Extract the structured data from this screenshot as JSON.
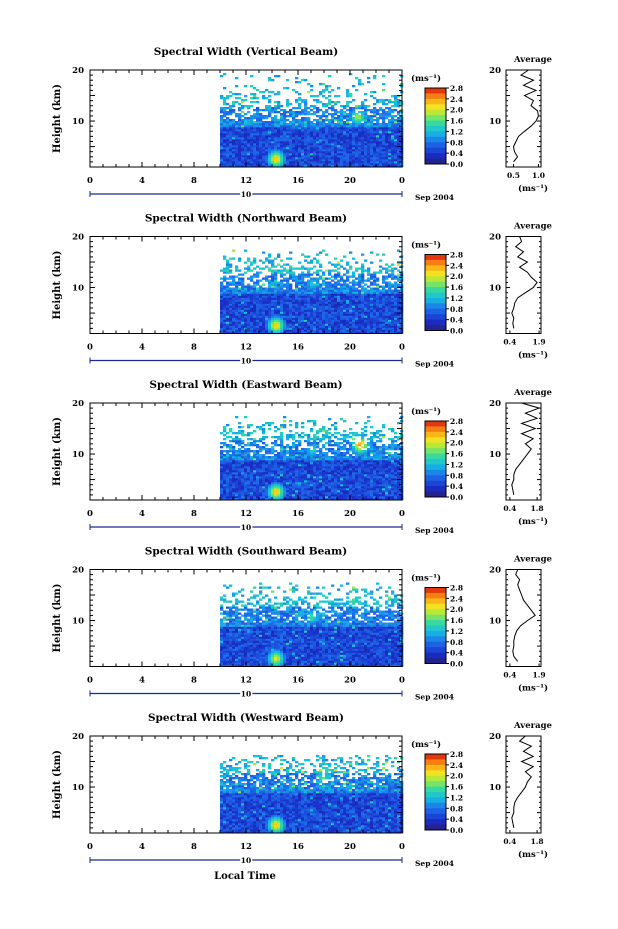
{
  "figure": {
    "xaxis_label": "Local Time"
  },
  "chart_data": [
    {
      "type": "heatmap",
      "title": "Spectral Width (Vertical Beam)",
      "ylabel": "Height (km)",
      "x_ticks": [
        "0",
        "4",
        "8",
        "12",
        "16",
        "20",
        "0"
      ],
      "y_ticks": [
        "20",
        "10"
      ],
      "xlim": [
        0,
        24
      ],
      "ylim": [
        1,
        20
      ],
      "date_marker": "10",
      "date_suffix": "Sep 2004",
      "data_start_hour": 10,
      "colorbar": {
        "unit": "(ms⁻¹)",
        "ticks": [
          "2.8",
          "2.4",
          "2.0",
          "1.6",
          "1.2",
          "0.8",
          "0.4",
          "0.0"
        ],
        "range": [
          0,
          2.8
        ]
      },
      "features": [
        {
          "x": 14.2,
          "y": 2.8,
          "v": 2.4
        },
        {
          "x": 20.5,
          "y": 11,
          "v": 2.0
        },
        {
          "x": 17,
          "y": 11,
          "v": 1.4
        }
      ],
      "average_profile": {
        "title": "Average",
        "unit": "(ms⁻¹)",
        "x_ticks": [
          "0.5",
          "1.0"
        ],
        "xlim": [
          0.35,
          1.05
        ],
        "y_ticks": [
          "20",
          "10"
        ],
        "heights": [
          2,
          3,
          4,
          5,
          6,
          7,
          8,
          9,
          10,
          11,
          12,
          13,
          14,
          15,
          16,
          17,
          18,
          19,
          20
        ],
        "values": [
          0.5,
          0.58,
          0.52,
          0.5,
          0.55,
          0.6,
          0.72,
          0.85,
          0.95,
          1.0,
          0.98,
          0.85,
          0.9,
          0.72,
          0.95,
          0.7,
          0.9,
          0.65,
          0.8
        ]
      }
    },
    {
      "type": "heatmap",
      "title": "Spectral Width (Northward Beam)",
      "ylabel": "Height (km)",
      "x_ticks": [
        "0",
        "4",
        "8",
        "12",
        "16",
        "20",
        "0"
      ],
      "y_ticks": [
        "20",
        "10"
      ],
      "xlim": [
        0,
        24
      ],
      "ylim": [
        1,
        20
      ],
      "date_marker": "10",
      "date_suffix": "Sep 2004",
      "data_start_hour": 10,
      "colorbar": {
        "unit": "(ms⁻¹)",
        "ticks": [
          "2.8",
          "2.4",
          "2.0",
          "1.6",
          "1.2",
          "0.8",
          "0.4",
          "0.0"
        ],
        "range": [
          0,
          2.8
        ]
      },
      "features": [
        {
          "x": 14.2,
          "y": 2.8,
          "v": 2.4
        },
        {
          "x": 17,
          "y": 11,
          "v": 1.4
        }
      ],
      "average_profile": {
        "title": "Average",
        "unit": "(ms⁻¹)",
        "x_ticks": [
          "0.4",
          "1.9"
        ],
        "xlim": [
          0.2,
          2.0
        ],
        "y_ticks": [
          "20",
          "10"
        ],
        "heights": [
          2,
          3,
          4,
          5,
          6,
          7,
          8,
          9,
          10,
          11,
          12,
          13,
          14,
          15,
          16,
          17,
          18,
          19,
          20
        ],
        "values": [
          0.6,
          0.55,
          0.6,
          0.5,
          0.6,
          0.65,
          0.8,
          1.2,
          1.6,
          1.8,
          1.5,
          1.3,
          0.9,
          1.3,
          0.8,
          1.1,
          0.7,
          1.0,
          0.9
        ]
      }
    },
    {
      "type": "heatmap",
      "title": "Spectral Width (Eastward Beam)",
      "ylabel": "Height (km)",
      "x_ticks": [
        "0",
        "4",
        "8",
        "12",
        "16",
        "20",
        "0"
      ],
      "y_ticks": [
        "20",
        "10"
      ],
      "xlim": [
        0,
        24
      ],
      "ylim": [
        1,
        20
      ],
      "date_marker": "10",
      "date_suffix": "Sep 2004",
      "data_start_hour": 10,
      "colorbar": {
        "unit": "(ms⁻¹)",
        "ticks": [
          "2.8",
          "2.4",
          "2.0",
          "1.6",
          "1.2",
          "0.8",
          "0.4",
          "0.0"
        ],
        "range": [
          0,
          2.8
        ]
      },
      "features": [
        {
          "x": 14.2,
          "y": 2.8,
          "v": 2.4
        },
        {
          "x": 20.7,
          "y": 12,
          "v": 2.6
        },
        {
          "x": 17,
          "y": 11,
          "v": 1.5
        }
      ],
      "average_profile": {
        "title": "Average",
        "unit": "(ms⁻¹)",
        "x_ticks": [
          "0.4",
          "1.8"
        ],
        "xlim": [
          0.2,
          2.0
        ],
        "y_ticks": [
          "20",
          "10"
        ],
        "heights": [
          2,
          3,
          4,
          5,
          6,
          7,
          8,
          9,
          10,
          11,
          12,
          13,
          14,
          15,
          16,
          17,
          18,
          19,
          20
        ],
        "values": [
          0.6,
          0.55,
          0.5,
          0.6,
          0.6,
          0.7,
          0.9,
          1.1,
          1.3,
          1.5,
          1.2,
          1.6,
          1.0,
          1.7,
          1.0,
          1.8,
          1.2,
          1.9,
          1.0
        ]
      }
    },
    {
      "type": "heatmap",
      "title": "Spectral Width (Southward Beam)",
      "ylabel": "Height (km)",
      "x_ticks": [
        "0",
        "4",
        "8",
        "12",
        "16",
        "20",
        "0"
      ],
      "y_ticks": [
        "20",
        "10"
      ],
      "xlim": [
        0,
        24
      ],
      "ylim": [
        1,
        20
      ],
      "date_marker": "10",
      "date_suffix": "Sep 2004",
      "data_start_hour": 10,
      "colorbar": {
        "unit": "(ms⁻¹)",
        "ticks": [
          "2.8",
          "2.4",
          "2.0",
          "1.6",
          "1.2",
          "0.8",
          "0.4",
          "0.0"
        ],
        "range": [
          0,
          2.8
        ]
      },
      "features": [
        {
          "x": 14.2,
          "y": 2.8,
          "v": 2.2
        },
        {
          "x": 17,
          "y": 11,
          "v": 1.6
        }
      ],
      "average_profile": {
        "title": "Average",
        "unit": "(ms⁻¹)",
        "x_ticks": [
          "0.4",
          "1.9"
        ],
        "xlim": [
          0.2,
          2.0
        ],
        "y_ticks": [
          "20",
          "10"
        ],
        "heights": [
          2,
          3,
          4,
          5,
          6,
          7,
          8,
          9,
          10,
          11,
          12,
          13,
          14,
          15,
          16,
          17,
          18,
          19,
          20
        ],
        "values": [
          0.8,
          0.6,
          0.55,
          0.6,
          0.6,
          0.65,
          0.75,
          0.95,
          1.3,
          1.7,
          1.5,
          1.3,
          1.1,
          1.0,
          0.9,
          0.8,
          0.9,
          0.7,
          0.8
        ]
      }
    },
    {
      "type": "heatmap",
      "title": "Spectral Width (Westward Beam)",
      "ylabel": "Height (km)",
      "x_ticks": [
        "0",
        "4",
        "8",
        "12",
        "16",
        "20",
        "0"
      ],
      "y_ticks": [
        "20",
        "10"
      ],
      "xlim": [
        0,
        24
      ],
      "ylim": [
        1,
        20
      ],
      "date_marker": "10",
      "date_suffix": "Sep 2004",
      "data_start_hour": 10,
      "colorbar": {
        "unit": "(ms⁻¹)",
        "ticks": [
          "2.8",
          "2.4",
          "2.0",
          "1.6",
          "1.2",
          "0.8",
          "0.4",
          "0.0"
        ],
        "range": [
          0,
          2.8
        ]
      },
      "features": [
        {
          "x": 14.2,
          "y": 2.8,
          "v": 2.4
        },
        {
          "x": 17.8,
          "y": 12,
          "v": 1.7
        }
      ],
      "average_profile": {
        "title": "Average",
        "unit": "(ms⁻¹)",
        "x_ticks": [
          "0.4",
          "1.8"
        ],
        "xlim": [
          0.2,
          2.0
        ],
        "y_ticks": [
          "20",
          "10"
        ],
        "heights": [
          2,
          3,
          4,
          5,
          6,
          7,
          8,
          9,
          10,
          11,
          12,
          13,
          14,
          15,
          16,
          17,
          18,
          19,
          20
        ],
        "values": [
          0.6,
          0.55,
          0.5,
          0.6,
          0.6,
          0.65,
          0.8,
          1.0,
          1.2,
          1.3,
          1.5,
          1.2,
          1.6,
          1.0,
          1.6,
          1.1,
          1.5,
          0.9,
          1.2
        ]
      }
    }
  ]
}
